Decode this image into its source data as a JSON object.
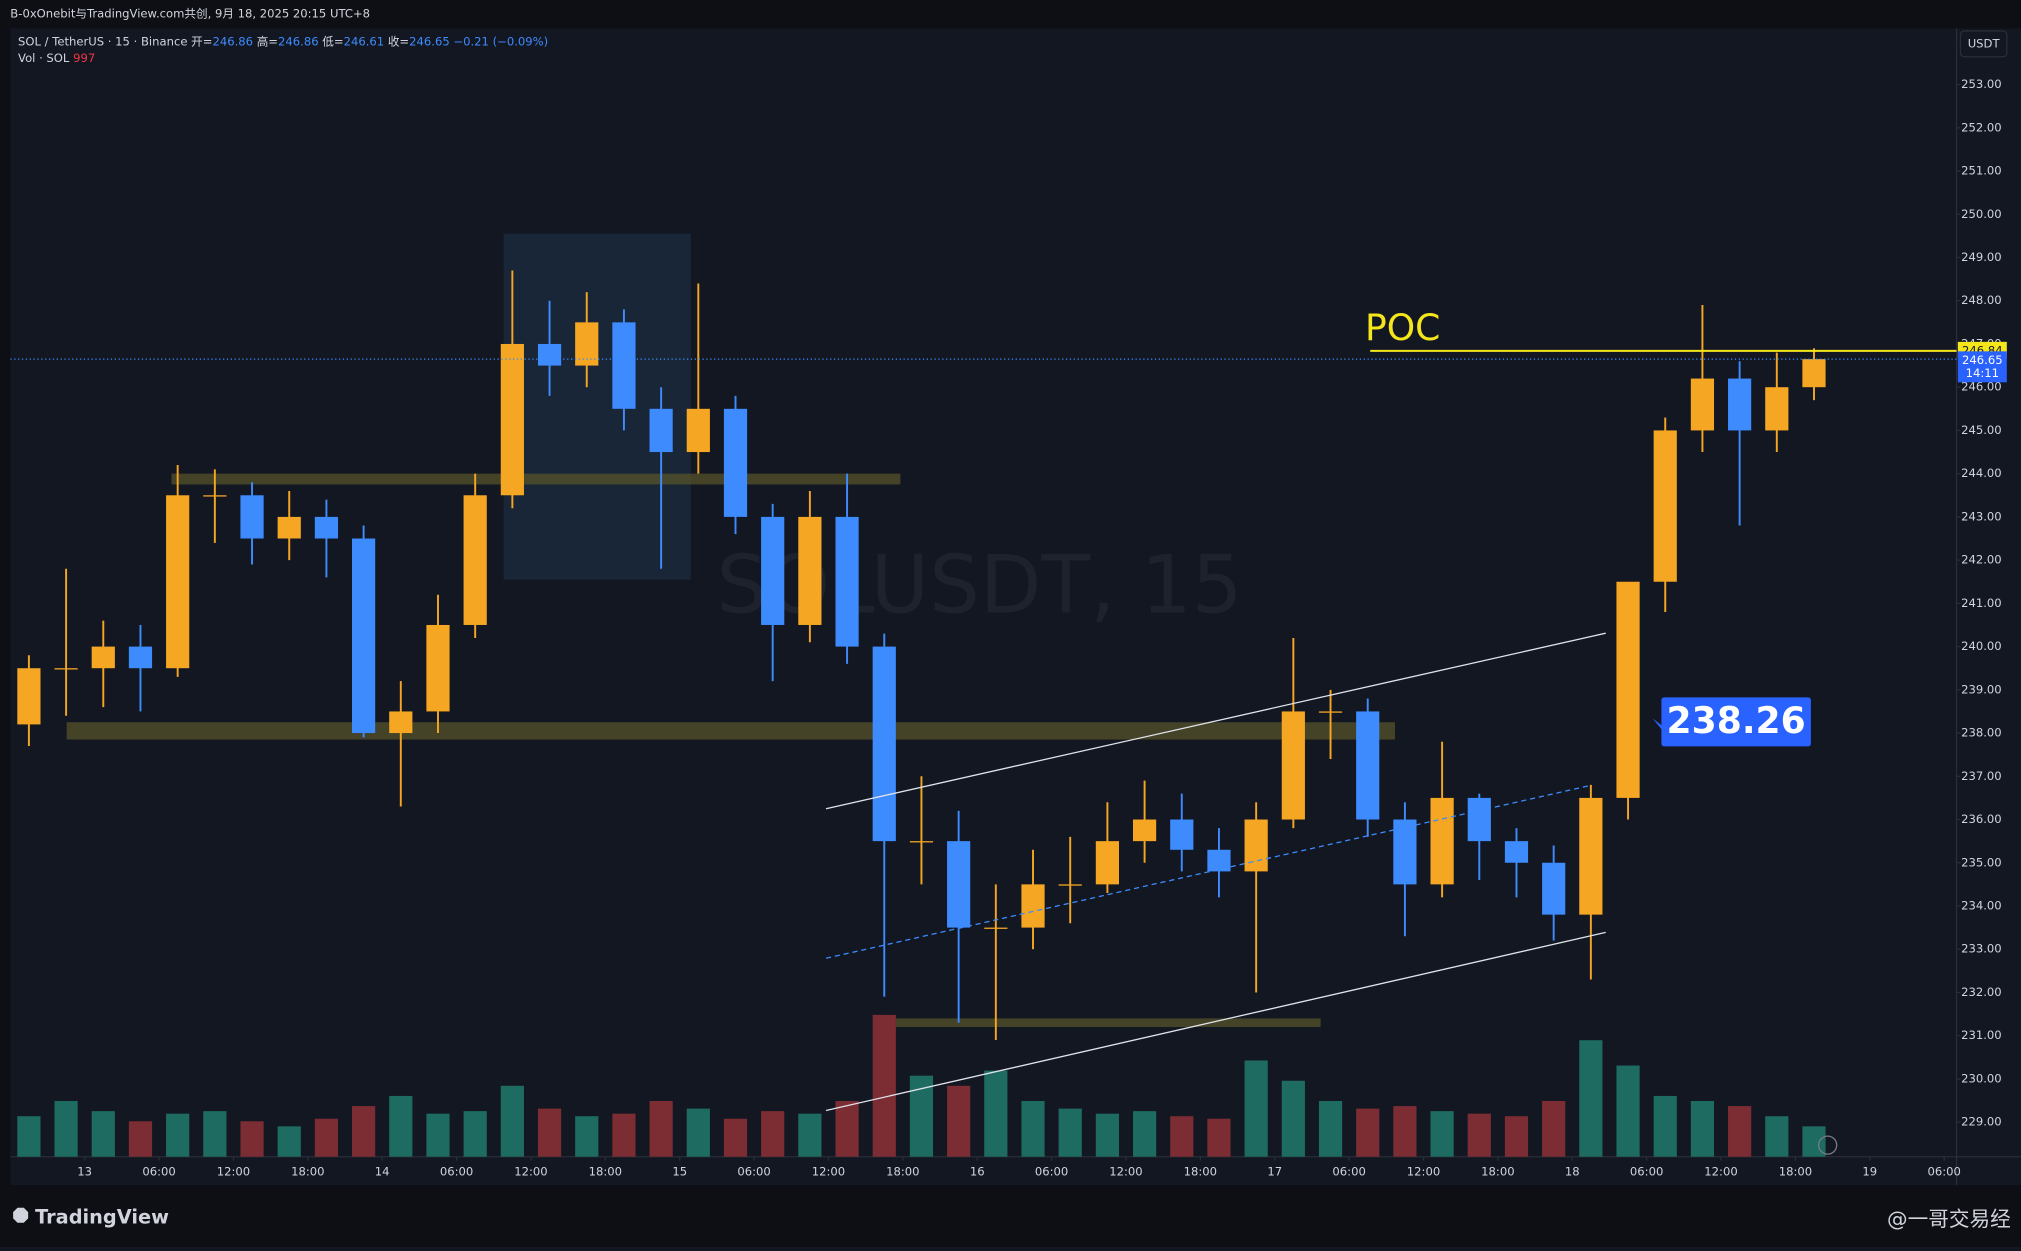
{
  "header": {
    "text": "B-0xOnebit与TradingView.com共创, 9月 18, 2025 20:15 UTC+8"
  },
  "legend": {
    "symbol": "SOL / TetherUS · 15 · Binance",
    "ohlc": [
      {
        "label": "开=",
        "value": "246.86"
      },
      {
        "label": "高=",
        "value": "246.86"
      },
      {
        "label": "低=",
        "value": "246.61"
      },
      {
        "label": "收=",
        "value": "246.65"
      }
    ],
    "change": "−0.21 (−0.09%)",
    "volume_label": "Vol · SOL",
    "volume_value": "997"
  },
  "footer": {
    "brand": "TradingView",
    "credit": "@一哥交易经"
  },
  "chart_data": {
    "type": "candlestick",
    "watermark": "SOLUSDT, 15",
    "currency": "USDT",
    "up_color": "#f5a623",
    "down_color": "#3d8bfd",
    "volume_up_color": "#1d6b61",
    "volume_down_color": "#7c2c33",
    "x": [
      -4.5,
      -1.5,
      1.5,
      4.5,
      7.5,
      10.5,
      13.5,
      16.5,
      19.5,
      22.5,
      25.5,
      28.5,
      31.5,
      34.5,
      37.5,
      40.5,
      43.5,
      46.5,
      49.5,
      52.5,
      55.5,
      58.5,
      61.5,
      64.5,
      67.5,
      70.5,
      73.5,
      76.5,
      79.5,
      82.5,
      85.5,
      88.5,
      91.5,
      94.5,
      97.5,
      100.5,
      103.5,
      106.5,
      109.5,
      112.5,
      115.5,
      118.5,
      121.5,
      124.5,
      127.5,
      130.5,
      133.5,
      136.5,
      139.5
    ],
    "open": [
      238.2,
      239.5,
      239.5,
      240,
      239.5,
      243.5,
      243.5,
      242.5,
      243,
      242.5,
      238,
      238.5,
      240.5,
      243.5,
      247,
      246.5,
      247.5,
      245.5,
      244.5,
      245.5,
      243,
      240.5,
      243,
      240,
      235.5,
      235.5,
      233.5,
      233.5,
      234.5,
      234.5,
      235.5,
      236,
      235.3,
      234.8,
      236,
      238.5,
      238.5,
      236,
      234.5,
      236.5,
      235.5,
      235,
      233.8,
      236.5,
      241.5,
      245,
      246.2,
      245,
      246
    ],
    "high": [
      239.8,
      241.8,
      240.6,
      240.5,
      244.2,
      244.1,
      243.8,
      243.6,
      243.4,
      242.8,
      239.2,
      241.2,
      244,
      248.7,
      248,
      248.2,
      247.8,
      246,
      248.4,
      245.8,
      243.3,
      243.6,
      244,
      240.3,
      237,
      236.2,
      234.5,
      235.3,
      235.6,
      236.4,
      236.9,
      236.6,
      235.8,
      236.4,
      240.2,
      239,
      238.8,
      236.4,
      237.8,
      236.6,
      235.8,
      235.4,
      236.8,
      241.3,
      245.3,
      247.9,
      246.6,
      246.8,
      246.9
    ],
    "low": [
      237.7,
      238.4,
      238.6,
      238.5,
      239.3,
      242.4,
      241.9,
      242,
      241.6,
      237.9,
      236.3,
      238,
      240.2,
      243.2,
      245.8,
      246,
      245,
      241.8,
      244,
      242.6,
      239.2,
      240.1,
      239.6,
      231.9,
      234.5,
      231.3,
      230.9,
      233,
      233.6,
      234.3,
      235,
      234.8,
      234.2,
      232,
      235.8,
      237.4,
      235.6,
      233.3,
      234.2,
      234.6,
      234.2,
      233.2,
      232.3,
      236,
      240.8,
      244.5,
      242.8,
      244.5,
      245.7
    ],
    "close": [
      239.5,
      239.5,
      240,
      239.5,
      243.5,
      243.5,
      242.5,
      243,
      242.5,
      238,
      238.5,
      240.5,
      243.5,
      247,
      246.5,
      247.5,
      245.5,
      244.5,
      245.5,
      243,
      240.5,
      243,
      240,
      235.5,
      235.5,
      233.5,
      233.5,
      234.5,
      234.5,
      235.5,
      236,
      235.3,
      234.8,
      236,
      238.5,
      238.5,
      236,
      234.5,
      236.5,
      235.5,
      235,
      233.8,
      236.5,
      241.5,
      245,
      246.2,
      245,
      246,
      246.65
    ],
    "volume": [
      80,
      110,
      90,
      70,
      85,
      90,
      70,
      60,
      75,
      100,
      120,
      85,
      90,
      140,
      95,
      80,
      85,
      110,
      95,
      75,
      90,
      85,
      110,
      280,
      160,
      140,
      170,
      110,
      95,
      85,
      90,
      80,
      75,
      190,
      150,
      110,
      95,
      100,
      90,
      85,
      80,
      110,
      230,
      180,
      120,
      110,
      100,
      80,
      60
    ],
    "xlim": [
      -6,
      151
    ],
    "ylim": [
      228.2,
      254.3
    ],
    "xticks": [
      {
        "value": 0,
        "label": "13"
      },
      {
        "value": 6,
        "label": "06:00"
      },
      {
        "value": 12,
        "label": "12:00"
      },
      {
        "value": 18,
        "label": "18:00"
      },
      {
        "value": 24,
        "label": "14"
      },
      {
        "value": 30,
        "label": "06:00"
      },
      {
        "value": 36,
        "label": "12:00"
      },
      {
        "value": 42,
        "label": "18:00"
      },
      {
        "value": 48,
        "label": "15"
      },
      {
        "value": 54,
        "label": "06:00"
      },
      {
        "value": 60,
        "label": "12:00"
      },
      {
        "value": 66,
        "label": "18:00"
      },
      {
        "value": 72,
        "label": "16"
      },
      {
        "value": 78,
        "label": "06:00"
      },
      {
        "value": 84,
        "label": "12:00"
      },
      {
        "value": 90,
        "label": "18:00"
      },
      {
        "value": 96,
        "label": "17"
      },
      {
        "value": 102,
        "label": "06:00"
      },
      {
        "value": 108,
        "label": "12:00"
      },
      {
        "value": 114,
        "label": "18:00"
      },
      {
        "value": 120,
        "label": "18"
      },
      {
        "value": 126,
        "label": "06:00"
      },
      {
        "value": 132,
        "label": "12:00"
      },
      {
        "value": 138,
        "label": "18:00"
      },
      {
        "value": 144,
        "label": "19"
      },
      {
        "value": 150,
        "label": "06:00"
      }
    ],
    "yticks": [
      {
        "value": 229,
        "label": "229.00"
      },
      {
        "value": 230,
        "label": "230.00"
      },
      {
        "value": 231,
        "label": "231.00"
      },
      {
        "value": 232,
        "label": "232.00"
      },
      {
        "value": 233,
        "label": "233.00"
      },
      {
        "value": 234,
        "label": "234.00"
      },
      {
        "value": 235,
        "label": "235.00"
      },
      {
        "value": 236,
        "label": "236.00"
      },
      {
        "value": 237,
        "label": "237.00"
      },
      {
        "value": 238,
        "label": "238.00"
      },
      {
        "value": 239,
        "label": "239.00"
      },
      {
        "value": 240,
        "label": "240.00"
      },
      {
        "value": 241,
        "label": "241.00"
      },
      {
        "value": 242,
        "label": "242.00"
      },
      {
        "value": 243,
        "label": "243.00"
      },
      {
        "value": 244,
        "label": "244.00"
      },
      {
        "value": 245,
        "label": "245.00"
      },
      {
        "value": 246,
        "label": "246.00"
      },
      {
        "value": 247,
        "label": "247.00"
      },
      {
        "value": 248,
        "label": "248.00"
      },
      {
        "value": 249,
        "label": "249.00"
      },
      {
        "value": 250,
        "label": "250.00"
      },
      {
        "value": 251,
        "label": "251.00"
      },
      {
        "value": 252,
        "label": "252.00"
      },
      {
        "value": 253,
        "label": "253.00"
      }
    ],
    "zones": [
      {
        "x": [
          7,
          65.8
        ],
        "y": [
          243.75,
          244
        ]
      },
      {
        "x": [
          -1.45,
          105.7
        ],
        "y": [
          237.85,
          238.25
        ]
      },
      {
        "x": [
          64.9,
          99.7
        ],
        "y": [
          231.2,
          231.4
        ]
      }
    ],
    "range_box": {
      "x": [
        33.8,
        48.9
      ],
      "y": [
        241.55,
        249.55
      ]
    },
    "channel": [
      {
        "x": [
          59.8,
          122.7
        ],
        "y": [
          236.25,
          240.31
        ]
      },
      {
        "x": [
          59.8,
          122.7
        ],
        "y": [
          229.27,
          233.39
        ]
      }
    ],
    "channel_mid": {
      "x": [
        59.8,
        121.5
      ],
      "y": [
        232.79,
        236.79
      ]
    },
    "poc": {
      "label": "POC",
      "x": [
        103.7,
        151
      ],
      "value": 246.84
    },
    "callout": {
      "value": 238.26,
      "label": "238.26"
    },
    "last_price": {
      "value": 246.65,
      "label": "246.65",
      "countdown": "14:11"
    },
    "poc_price_label": {
      "value": 246.84,
      "label": "246.84"
    }
  }
}
